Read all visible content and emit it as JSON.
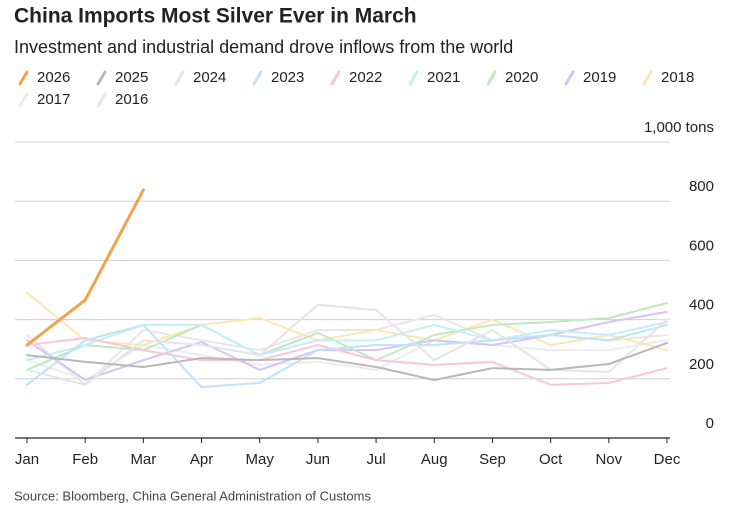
{
  "chart_data": {
    "type": "line",
    "title": "China Imports Most Silver Ever in March",
    "subtitle": "Investment and industrial demand drove inflows from the world",
    "source": "Source: Bloomberg, China General Administration of Customs",
    "categories": [
      "Jan",
      "Feb",
      "Mar",
      "Apr",
      "May",
      "Jun",
      "Jul",
      "Aug",
      "Sep",
      "Oct",
      "Nov",
      "Dec"
    ],
    "ylim": [
      0,
      1000
    ],
    "yticks": [
      0,
      200,
      400,
      600,
      800,
      {
        "value": 1000,
        "label": "1,000 tons"
      }
    ],
    "grid": true,
    "series": [
      {
        "name": "2026",
        "color": "#f4a24a",
        "values": [
          314,
          466,
          838,
          null,
          null,
          null,
          null,
          null,
          null,
          null,
          null,
          null
        ]
      },
      {
        "name": "2025",
        "color": "#b8b8b8",
        "values": [
          280,
          257,
          240,
          270,
          263,
          270,
          240,
          196,
          236,
          230,
          250,
          321
        ]
      },
      {
        "name": "2024",
        "color": "#e4e4e4",
        "values": [
          230,
          180,
          330,
          314,
          280,
          450,
          432,
          263,
          365,
          230,
          223,
          400
        ]
      },
      {
        "name": "2023",
        "color": "#bfe3f7",
        "values": [
          180,
          330,
          382,
          172,
          186,
          297,
          314,
          314,
          330,
          348,
          330,
          382
        ]
      },
      {
        "name": "2022",
        "color": "#f9c6d9",
        "values": [
          314,
          338,
          297,
          263,
          263,
          314,
          263,
          247,
          257,
          180,
          186,
          236
        ]
      },
      {
        "name": "2021",
        "color": "#c2eef8",
        "values": [
          263,
          314,
          382,
          382,
          280,
          330,
          330,
          382,
          330,
          365,
          348,
          392
        ]
      },
      {
        "name": "2020",
        "color": "#bfe8c4",
        "values": [
          230,
          314,
          297,
          382,
          280,
          355,
          263,
          348,
          382,
          392,
          405,
          456
        ]
      },
      {
        "name": "2019",
        "color": "#d6c2f5",
        "values": [
          330,
          196,
          263,
          324,
          230,
          297,
          297,
          330,
          314,
          348,
          392,
          426
        ]
      },
      {
        "name": "2018",
        "color": "#fbe8b0",
        "values": [
          490,
          330,
          314,
          382,
          405,
          330,
          365,
          330,
          400,
          314,
          348,
          297
        ]
      },
      {
        "name": "2017",
        "color": "#ececec",
        "values": [
          263,
          196,
          314,
          280,
          247,
          257,
          230,
          330,
          314,
          297,
          297,
          330
        ]
      },
      {
        "name": "2016",
        "color": "#e6e6e6",
        "values": [
          348,
          180,
          365,
          330,
          297,
          365,
          365,
          416,
          330,
          348,
          330,
          348
        ]
      }
    ]
  }
}
